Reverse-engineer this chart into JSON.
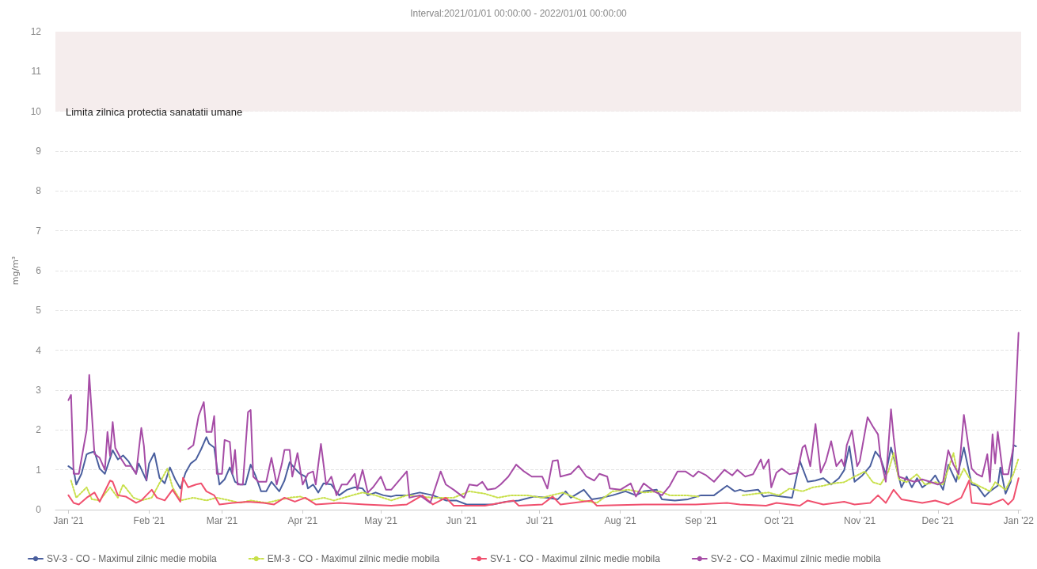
{
  "chart_data": {
    "type": "line",
    "title": "Interval:2021/01/01 00:00:00 - 2022/01/01 00:00:00",
    "ylabel": "mg/m³",
    "xlim": [
      "2020-12-27",
      "2022-01-02"
    ],
    "xticks": [
      {
        "value": "2021-01-01",
        "label": "Jan '21"
      },
      {
        "value": "2021-02-01",
        "label": "Feb '21"
      },
      {
        "value": "2021-03-01",
        "label": "Mar '21"
      },
      {
        "value": "2021-04-01",
        "label": "Apr '21"
      },
      {
        "value": "2021-05-01",
        "label": "May '21"
      },
      {
        "value": "2021-06-01",
        "label": "Jun '21"
      },
      {
        "value": "2021-07-01",
        "label": "Jul '21"
      },
      {
        "value": "2021-08-01",
        "label": "Aug '21"
      },
      {
        "value": "2021-09-01",
        "label": "Sep '21"
      },
      {
        "value": "2021-10-01",
        "label": "Oct '21"
      },
      {
        "value": "2021-11-01",
        "label": "Nov '21"
      },
      {
        "value": "2021-12-01",
        "label": "Dec '21"
      },
      {
        "value": "2022-01-01",
        "label": "Jan '22"
      }
    ],
    "ylim": [
      0,
      12
    ],
    "yticks": [
      0,
      1,
      2,
      3,
      4,
      5,
      6,
      7,
      8,
      9,
      10,
      11,
      12
    ],
    "grid": "y",
    "legend": "bottom",
    "bands": [
      {
        "axis": "y",
        "from": 10,
        "to": 12,
        "label": "Limita zilnica protectia sanatatii umane",
        "color": "#f5eded"
      }
    ],
    "series": [
      {
        "name": "SV-3 - CO - Maximul zilnic medie mobila",
        "color": "#4a5f9e",
        "x": [
          "2021-01-01",
          "2021-01-03",
          "2021-01-04",
          "2021-01-06",
          "2021-01-08",
          "2021-01-09",
          "2021-01-11",
          "2021-01-13",
          "2021-01-15",
          "2021-01-17",
          "2021-01-18",
          "2021-01-20",
          "2021-01-22",
          "2021-01-24",
          "2021-01-27",
          "2021-01-28",
          "2021-01-31",
          "2021-02-01",
          "2021-02-03",
          "2021-02-05",
          "2021-02-07",
          "2021-02-09",
          "2021-02-11",
          "2021-02-13",
          "2021-02-15",
          "2021-02-17",
          "2021-02-19",
          "2021-02-21",
          "2021-02-23",
          "2021-02-24",
          "2021-02-26",
          "2021-02-28",
          "2021-03-02",
          "2021-03-04",
          "2021-03-06",
          "2021-03-08",
          "2021-03-10",
          "2021-03-12",
          "2021-03-14",
          "2021-03-16",
          "2021-03-18",
          "2021-03-20",
          "2021-03-23",
          "2021-03-25",
          "2021-03-27",
          "2021-03-29",
          "2021-03-31",
          "2021-04-02",
          "2021-04-03",
          "2021-04-05",
          "2021-04-07",
          "2021-04-09",
          "2021-04-12",
          "2021-04-15",
          "2021-04-18",
          "2021-04-21",
          "2021-04-24",
          "2021-04-26",
          "2021-04-29",
          "2021-05-02",
          "2021-05-05",
          "2021-05-07",
          "2021-05-11",
          "2021-05-16",
          "2021-05-21",
          "2021-05-26",
          "2021-05-30",
          "2021-06-03",
          "2021-06-08",
          "2021-06-13",
          "2021-06-18",
          "2021-06-23",
          "2021-06-29",
          "2021-07-04",
          "2021-07-08",
          "2021-07-11",
          "2021-07-13",
          "2021-07-18",
          "2021-07-21",
          "2021-07-25",
          "2021-07-29",
          "2021-08-03",
          "2021-08-07",
          "2021-08-10",
          "2021-08-15",
          "2021-08-17",
          "2021-08-22",
          "2021-08-27",
          "2021-09-01",
          "2021-09-06",
          "2021-09-11",
          "2021-09-14",
          "2021-09-16",
          "2021-09-18",
          "2021-09-23",
          "2021-09-25",
          "2021-09-28",
          "2021-10-02",
          "2021-10-06",
          "2021-10-09",
          "2021-10-12",
          "2021-10-15",
          "2021-10-18",
          "2021-10-21",
          "2021-10-24",
          "2021-10-26",
          "2021-10-28",
          "2021-10-30",
          "2021-11-02",
          "2021-11-05",
          "2021-11-07",
          "2021-11-09",
          "2021-11-11",
          "2021-11-13",
          "2021-11-15",
          "2021-11-17",
          "2021-11-19",
          "2021-11-21",
          "2021-11-23",
          "2021-11-25",
          "2021-11-28",
          "2021-11-30",
          "2021-12-03",
          "2021-12-05",
          "2021-12-08",
          "2021-12-11",
          "2021-12-14",
          "2021-12-16",
          "2021-12-19",
          "2021-12-21",
          "2021-12-24",
          "2021-12-25",
          "2021-12-27",
          "2021-12-29",
          "2021-12-30",
          "2021-12-31"
        ],
        "values": [
          1.09,
          1.0,
          0.63,
          0.9,
          1.39,
          1.42,
          1.46,
          1.03,
          0.9,
          1.29,
          1.49,
          1.26,
          1.36,
          1.22,
          0.9,
          1.16,
          0.73,
          1.16,
          1.42,
          0.8,
          0.66,
          1.06,
          0.76,
          0.53,
          0.93,
          1.16,
          1.26,
          1.52,
          1.82,
          1.66,
          1.56,
          0.63,
          0.76,
          1.06,
          0.7,
          0.63,
          0.63,
          1.13,
          0.83,
          0.46,
          0.46,
          0.7,
          0.46,
          0.73,
          1.19,
          1.03,
          0.9,
          0.83,
          0.53,
          0.63,
          0.43,
          0.66,
          0.63,
          0.36,
          0.5,
          0.56,
          0.53,
          0.36,
          0.43,
          0.36,
          0.33,
          0.36,
          0.36,
          0.43,
          0.36,
          0.23,
          0.23,
          0.13,
          0.13,
          0.13,
          0.2,
          0.23,
          0.33,
          0.3,
          0.26,
          0.46,
          0.3,
          0.5,
          0.26,
          0.3,
          0.36,
          0.46,
          0.36,
          0.46,
          0.5,
          0.26,
          0.23,
          0.26,
          0.36,
          0.36,
          0.6,
          0.46,
          0.5,
          0.46,
          0.5,
          0.33,
          0.36,
          0.33,
          0.3,
          1.22,
          0.7,
          0.73,
          0.79,
          0.63,
          0.79,
          0.99,
          1.59,
          0.7,
          0.86,
          1.09,
          1.46,
          1.29,
          0.89,
          1.56,
          1.09,
          0.56,
          0.83,
          0.56,
          0.79,
          0.56,
          0.7,
          0.86,
          0.5,
          1.13,
          0.7,
          1.56,
          0.63,
          0.6,
          0.33,
          0.46,
          0.6,
          1.06,
          0.4,
          0.7,
          1.62,
          1.59
        ]
      },
      {
        "name": "EM-3 - CO - Maximul zilnic medie mobila",
        "color": "#c8e04a",
        "line_style": "dotted",
        "x": [
          "2021-01-02",
          "2021-01-04",
          "2021-01-08",
          "2021-01-10",
          "2021-01-13",
          "2021-01-17",
          "2021-01-20",
          "2021-01-22",
          "2021-01-26",
          "2021-01-29",
          "2021-02-02",
          "2021-02-08",
          "2021-02-10",
          "2021-02-13",
          "2021-02-18",
          "2021-02-23",
          "2021-02-27",
          "2021-03-04",
          "2021-03-08",
          "2021-03-12",
          "2021-03-18",
          "2021-03-22",
          "2021-03-27",
          "2021-03-31",
          "2021-04-04",
          "2021-04-09",
          "2021-04-13",
          "2021-04-20",
          "2021-04-24",
          "2021-04-29",
          "2021-05-05",
          "2021-05-11",
          "2021-05-21",
          "2021-05-29",
          "2021-06-04",
          "2021-06-10",
          "2021-06-15",
          "2021-06-20",
          "2021-06-26",
          "2021-07-02",
          "2021-07-10",
          "2021-07-17",
          "2021-07-23",
          "2021-07-29",
          "2021-08-04",
          "2021-08-10",
          "2021-08-16",
          "2021-08-20",
          "2021-08-26",
          "2021-08-31",
          "2021-09-08",
          "2021-09-17",
          "2021-09-22",
          "2021-09-27",
          "2021-10-01",
          "2021-10-05",
          "2021-10-10",
          "2021-10-14",
          "2021-10-18",
          "2021-10-22",
          "2021-10-26",
          "2021-10-30",
          "2021-11-03",
          "2021-11-06",
          "2021-11-09",
          "2021-11-12",
          "2021-11-14",
          "2021-11-16",
          "2021-11-19",
          "2021-11-23",
          "2021-11-26",
          "2021-11-30",
          "2021-12-03",
          "2021-12-07",
          "2021-12-09",
          "2021-12-11",
          "2021-12-14",
          "2021-12-17",
          "2021-12-21",
          "2021-12-23",
          "2021-12-27",
          "2021-12-30",
          "2022-01-01"
        ],
        "values": [
          0.73,
          0.3,
          0.56,
          0.26,
          0.23,
          0.56,
          0.3,
          0.63,
          0.3,
          0.23,
          0.3,
          1.03,
          0.56,
          0.23,
          0.3,
          0.23,
          0.3,
          0.23,
          0.17,
          0.23,
          0.17,
          0.23,
          0.3,
          0.33,
          0.23,
          0.3,
          0.23,
          0.36,
          0.43,
          0.36,
          0.23,
          0.36,
          0.3,
          0.3,
          0.46,
          0.4,
          0.3,
          0.36,
          0.36,
          0.3,
          0.43,
          0.23,
          0.17,
          0.46,
          0.5,
          0.43,
          0.46,
          0.36,
          0.36,
          0.33,
          null,
          0.36,
          0.4,
          0.43,
          0.36,
          0.53,
          0.46,
          0.56,
          0.6,
          0.66,
          0.69,
          0.83,
          0.96,
          0.69,
          0.63,
          0.96,
          1.42,
          0.76,
          0.69,
          0.89,
          0.63,
          0.69,
          0.63,
          1.42,
          0.76,
          1.03,
          0.69,
          0.59,
          0.46,
          0.69,
          0.5,
          0.89,
          1.29
        ]
      },
      {
        "name": "SV-1 - CO - Maximul zilnic medie mobila",
        "color": "#f0506e",
        "x": [
          "2021-01-01",
          "2021-01-03",
          "2021-01-05",
          "2021-01-08",
          "2021-01-11",
          "2021-01-13",
          "2021-01-17",
          "2021-01-18",
          "2021-01-20",
          "2021-01-23",
          "2021-01-27",
          "2021-01-29",
          "2021-02-02",
          "2021-02-04",
          "2021-02-07",
          "2021-02-10",
          "2021-02-13",
          "2021-02-14",
          "2021-02-16",
          "2021-02-19",
          "2021-02-21",
          "2021-02-23",
          "2021-02-26",
          "2021-02-28",
          "2021-03-05",
          "2021-03-11",
          "2021-03-17",
          "2021-03-21",
          "2021-03-25",
          "2021-03-29",
          "2021-04-02",
          "2021-04-06",
          "2021-04-15",
          "2021-04-25",
          "2021-05-05",
          "2021-05-11",
          "2021-05-17",
          "2021-05-21",
          "2021-05-26",
          "2021-05-29",
          "2021-06-10",
          "2021-06-21",
          "2021-06-23",
          "2021-07-02",
          "2021-07-06",
          "2021-07-09",
          "2021-07-21",
          "2021-07-23",
          "2021-08-10",
          "2021-08-30",
          "2021-09-11",
          "2021-09-16",
          "2021-09-26",
          "2021-09-30",
          "2021-10-09",
          "2021-10-12",
          "2021-10-18",
          "2021-10-26",
          "2021-10-30",
          "2021-11-05",
          "2021-11-08",
          "2021-11-11",
          "2021-11-14",
          "2021-11-17",
          "2021-11-25",
          "2021-11-30",
          "2021-12-05",
          "2021-12-10",
          "2021-12-13",
          "2021-12-14",
          "2021-12-21",
          "2021-12-26",
          "2021-12-28",
          "2021-12-30",
          "2022-01-01"
        ],
        "values": [
          0.36,
          0.17,
          0.13,
          0.3,
          0.43,
          0.2,
          0.73,
          0.7,
          0.36,
          0.33,
          0.17,
          0.23,
          0.5,
          0.3,
          0.23,
          0.5,
          0.2,
          0.8,
          0.56,
          0.63,
          0.66,
          0.46,
          0.36,
          0.13,
          0.17,
          0.2,
          0.17,
          0.13,
          0.3,
          0.2,
          0.3,
          0.13,
          0.17,
          0.13,
          0.1,
          0.13,
          0.36,
          0.13,
          0.3,
          0.1,
          0.1,
          0.23,
          0.1,
          0.13,
          0.33,
          0.13,
          0.23,
          0.1,
          0.13,
          0.13,
          0.17,
          0.13,
          0.1,
          0.17,
          0.1,
          0.23,
          0.13,
          0.2,
          0.13,
          0.17,
          0.36,
          0.17,
          0.5,
          0.26,
          0.17,
          0.23,
          0.13,
          0.3,
          0.73,
          0.17,
          0.13,
          0.26,
          0.13,
          0.26,
          0.79
        ]
      },
      {
        "name": "SV-2 - CO - Maximul zilnic medie mobila",
        "color": "#a64ca6",
        "x": [
          "2021-01-01",
          "2021-01-02",
          "2021-01-03",
          "2021-01-05",
          "2021-01-08",
          "2021-01-09",
          "2021-01-11",
          "2021-01-13",
          "2021-01-15",
          "2021-01-16",
          "2021-01-17",
          "2021-01-18",
          "2021-01-19",
          "2021-01-21",
          "2021-01-23",
          "2021-01-25",
          "2021-01-27",
          "2021-01-29",
          "2021-01-30",
          "2021-01-31",
          "2021-02-08",
          "2021-02-16",
          "2021-02-18",
          "2021-02-20",
          "2021-02-22",
          "2021-02-23",
          "2021-02-25",
          "2021-02-26",
          "2021-02-27",
          "2021-03-01",
          "2021-03-02",
          "2021-03-04",
          "2021-03-05",
          "2021-03-06",
          "2021-03-07",
          "2021-03-09",
          "2021-03-11",
          "2021-03-12",
          "2021-03-13",
          "2021-03-15",
          "2021-03-18",
          "2021-03-20",
          "2021-03-22",
          "2021-03-24",
          "2021-03-25",
          "2021-03-27",
          "2021-03-28",
          "2021-03-30",
          "2021-04-01",
          "2021-04-03",
          "2021-04-05",
          "2021-04-06",
          "2021-04-08",
          "2021-04-10",
          "2021-04-12",
          "2021-04-14",
          "2021-04-16",
          "2021-04-18",
          "2021-04-21",
          "2021-04-22",
          "2021-04-24",
          "2021-04-26",
          "2021-04-28",
          "2021-05-01",
          "2021-05-03",
          "2021-05-05",
          "2021-05-11",
          "2021-05-12",
          "2021-05-16",
          "2021-05-20",
          "2021-05-24",
          "2021-05-26",
          "2021-05-29",
          "2021-06-02",
          "2021-06-04",
          "2021-06-07",
          "2021-06-09",
          "2021-06-11",
          "2021-06-14",
          "2021-06-16",
          "2021-06-19",
          "2021-06-22",
          "2021-06-25",
          "2021-06-28",
          "2021-07-02",
          "2021-07-04",
          "2021-07-06",
          "2021-07-08",
          "2021-07-09",
          "2021-07-13",
          "2021-07-16",
          "2021-07-19",
          "2021-07-22",
          "2021-07-24",
          "2021-07-27",
          "2021-07-28",
          "2021-08-01",
          "2021-08-05",
          "2021-08-07",
          "2021-08-10",
          "2021-08-14",
          "2021-08-17",
          "2021-08-20",
          "2021-08-23",
          "2021-08-26",
          "2021-08-29",
          "2021-08-31",
          "2021-09-03",
          "2021-09-06",
          "2021-09-10",
          "2021-09-13",
          "2021-09-15",
          "2021-09-18",
          "2021-09-21",
          "2021-09-24",
          "2021-09-25",
          "2021-09-27",
          "2021-09-28",
          "2021-09-30",
          "2021-10-02",
          "2021-10-05",
          "2021-10-08",
          "2021-10-10",
          "2021-10-11",
          "2021-10-13",
          "2021-10-15",
          "2021-10-17",
          "2021-10-19",
          "2021-10-21",
          "2021-10-23",
          "2021-10-25",
          "2021-10-26",
          "2021-10-27",
          "2021-10-29",
          "2021-10-31",
          "2021-11-01",
          "2021-11-04",
          "2021-11-06",
          "2021-11-08",
          "2021-11-09",
          "2021-11-11",
          "2021-11-13",
          "2021-11-14",
          "2021-11-15",
          "2021-11-16",
          "2021-11-19",
          "2021-11-22",
          "2021-11-25",
          "2021-11-28",
          "2021-12-01",
          "2021-12-03",
          "2021-12-05",
          "2021-12-07",
          "2021-12-09",
          "2021-12-11",
          "2021-12-14",
          "2021-12-16",
          "2021-12-18",
          "2021-12-20",
          "2021-12-21",
          "2021-12-22",
          "2021-12-23",
          "2021-12-24",
          "2021-12-26",
          "2021-12-28",
          "2021-12-30",
          "2022-01-01"
        ],
        "values": [
          2.75,
          2.88,
          0.9,
          0.9,
          2.0,
          3.38,
          1.4,
          1.3,
          1.0,
          1.95,
          1.35,
          2.2,
          1.55,
          1.3,
          1.1,
          1.1,
          0.9,
          2.05,
          1.6,
          0.75,
          null,
          1.52,
          1.62,
          2.35,
          2.7,
          1.95,
          1.95,
          2.35,
          0.9,
          0.9,
          1.75,
          1.7,
          0.9,
          1.5,
          0.63,
          0.63,
          2.45,
          2.5,
          0.83,
          0.7,
          0.7,
          1.3,
          0.63,
          1.15,
          1.5,
          1.5,
          0.83,
          1.42,
          0.63,
          0.9,
          0.96,
          0.63,
          1.65,
          0.63,
          0.83,
          0.36,
          0.63,
          0.63,
          0.9,
          0.5,
          1.0,
          0.43,
          0.56,
          0.83,
          0.5,
          0.5,
          0.96,
          0.3,
          0.36,
          0.17,
          0.96,
          0.63,
          0.5,
          0.3,
          0.63,
          0.6,
          0.7,
          0.5,
          0.53,
          0.63,
          0.83,
          1.13,
          0.96,
          0.83,
          0.83,
          0.53,
          1.22,
          1.24,
          0.83,
          0.9,
          1.1,
          0.83,
          0.73,
          0.9,
          0.83,
          0.53,
          0.5,
          0.66,
          0.33,
          0.66,
          0.46,
          0.36,
          0.6,
          0.96,
          0.96,
          0.83,
          0.96,
          0.86,
          0.7,
          1.0,
          0.86,
          1.0,
          0.83,
          0.89,
          1.26,
          1.03,
          1.26,
          0.56,
          0.93,
          1.03,
          0.89,
          0.93,
          1.56,
          1.62,
          1.09,
          2.15,
          0.93,
          1.22,
          1.72,
          1.09,
          1.26,
          1.09,
          1.62,
          1.99,
          1.09,
          1.22,
          2.32,
          2.09,
          1.89,
          1.29,
          0.7,
          2.52,
          1.82,
          1.29,
          0.83,
          0.76,
          0.7,
          0.76,
          0.7,
          0.63,
          0.7,
          1.49,
          1.13,
          0.89,
          2.38,
          1.03,
          0.89,
          0.83,
          1.39,
          0.7,
          1.89,
          1.16,
          1.95,
          0.89,
          0.89,
          1.56,
          4.44
        ]
      }
    ]
  }
}
